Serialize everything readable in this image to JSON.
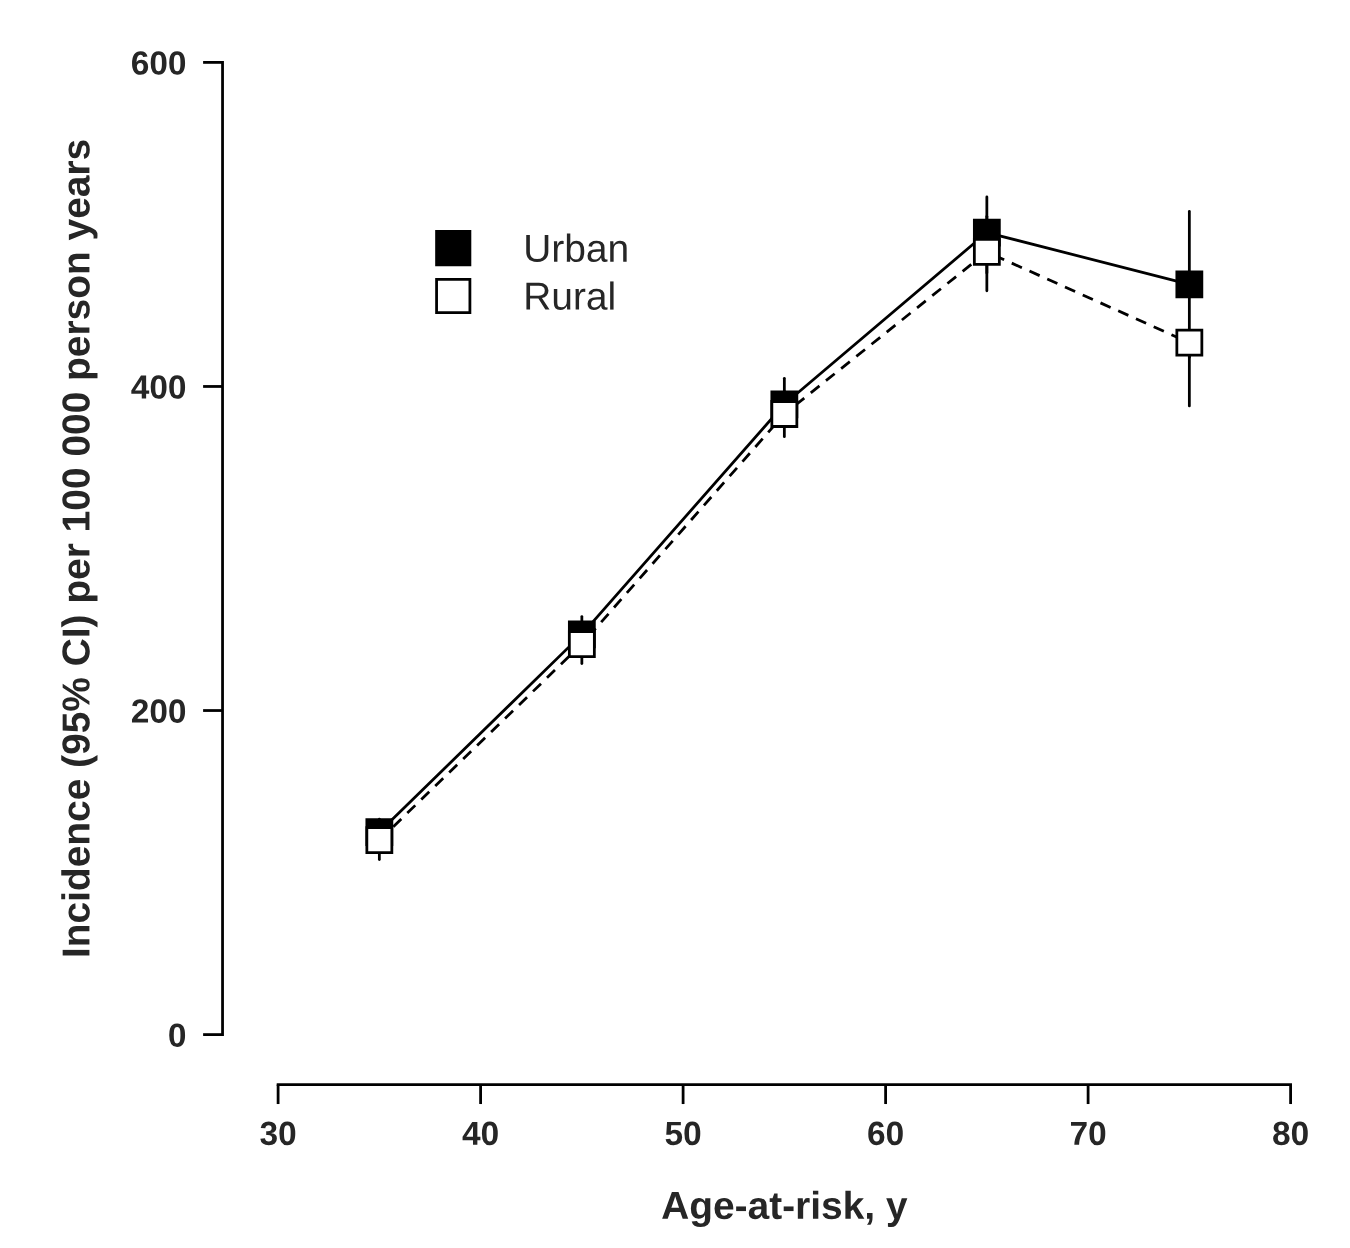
{
  "chart_data": {
    "type": "line",
    "xlabel": "Age-at-risk, y",
    "ylabel": "Incidence (95% CI) per 100 000 person years",
    "x": [
      35,
      45,
      55,
      65,
      75
    ],
    "series": [
      {
        "name": "Urban",
        "color": "#000000",
        "line_style": "solid",
        "values": [
          125,
          247,
          389,
          495,
          463
        ],
        "errors": [
          [
            115,
            133
          ],
          [
            236,
            258
          ],
          [
            375,
            405
          ],
          [
            470,
            517
          ],
          [
            418,
            508
          ]
        ]
      },
      {
        "name": "Rural",
        "color": "#000000",
        "line_style": "dashed",
        "values": [
          120,
          241,
          383,
          483,
          427
        ],
        "errors": [
          [
            108,
            128
          ],
          [
            229,
            252
          ],
          [
            369,
            397
          ],
          [
            459,
            505
          ],
          [
            388,
            427
          ]
        ]
      }
    ],
    "xlim": [
      30,
      80
    ],
    "xticks": [
      30,
      40,
      50,
      60,
      70,
      80
    ],
    "ylim": [
      0,
      600
    ],
    "yticks": [
      0,
      200,
      400,
      600
    ],
    "marker": "square",
    "grid": false,
    "legend": "top left"
  }
}
